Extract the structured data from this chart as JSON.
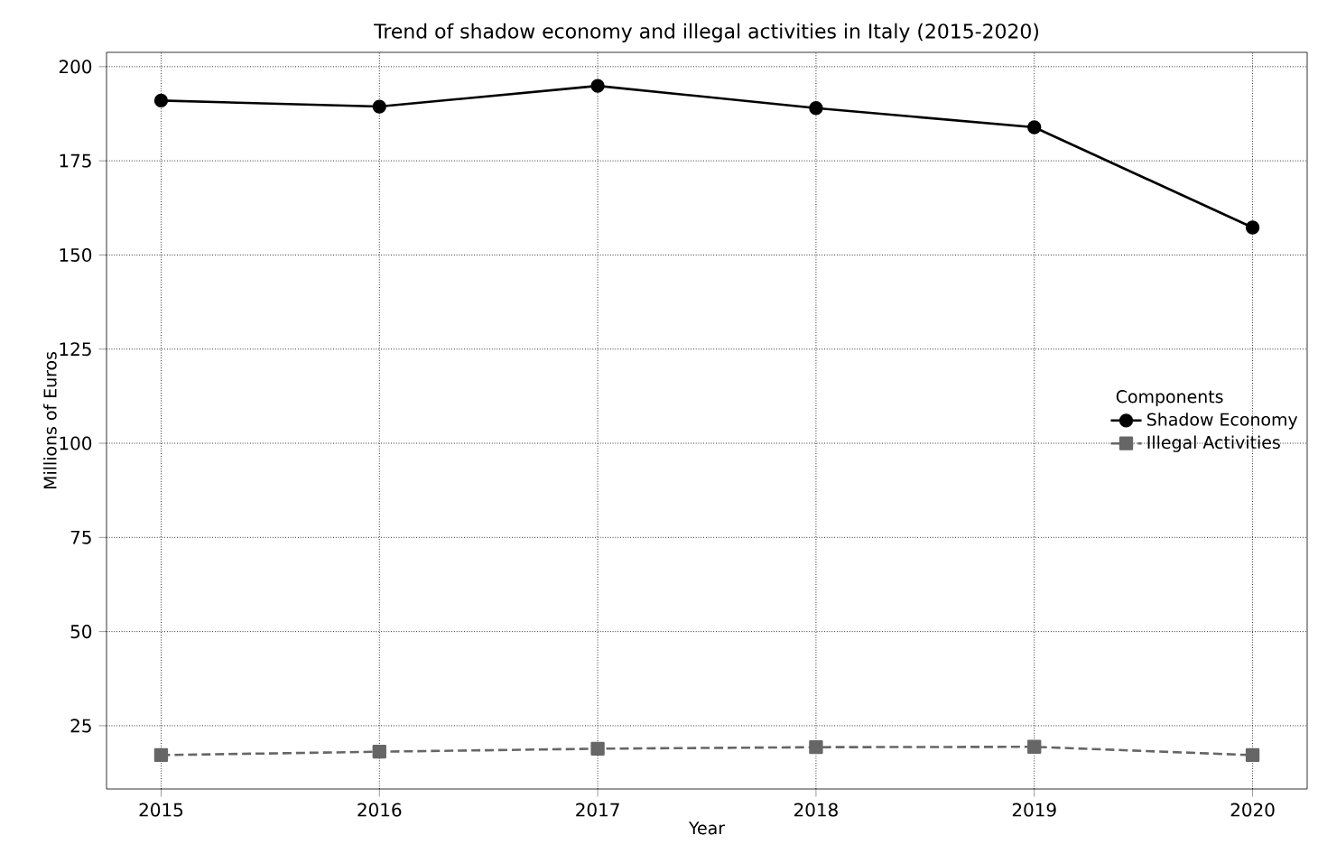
{
  "chart_data": {
    "type": "line",
    "title": "Trend of shadow economy and illegal activities in Italy (2015-2020)",
    "xlabel": "Year",
    "ylabel": "Millions of Euros",
    "legend_title": "Components",
    "x": [
      2015,
      2016,
      2017,
      2018,
      2019,
      2020
    ],
    "series": [
      {
        "name": "Shadow Economy",
        "color": "#000000",
        "marker": "circle",
        "line_style": "solid",
        "values": [
          191,
          189.4,
          194.9,
          189,
          183.9,
          157.3
        ]
      },
      {
        "name": "Illegal Activities",
        "color": "#666666",
        "marker": "square",
        "line_style": "dashed",
        "values": [
          17.2,
          18.1,
          18.9,
          19.3,
          19.4,
          17.2
        ]
      }
    ],
    "xlim": [
      2014.75,
      2020.25
    ],
    "ylim": [
      8.2,
      203.8
    ],
    "xticks": [
      2015,
      2016,
      2017,
      2018,
      2019,
      2020
    ],
    "yticks": [
      25,
      50,
      75,
      100,
      125,
      150,
      175,
      200
    ],
    "grid": true,
    "legend": "right"
  }
}
